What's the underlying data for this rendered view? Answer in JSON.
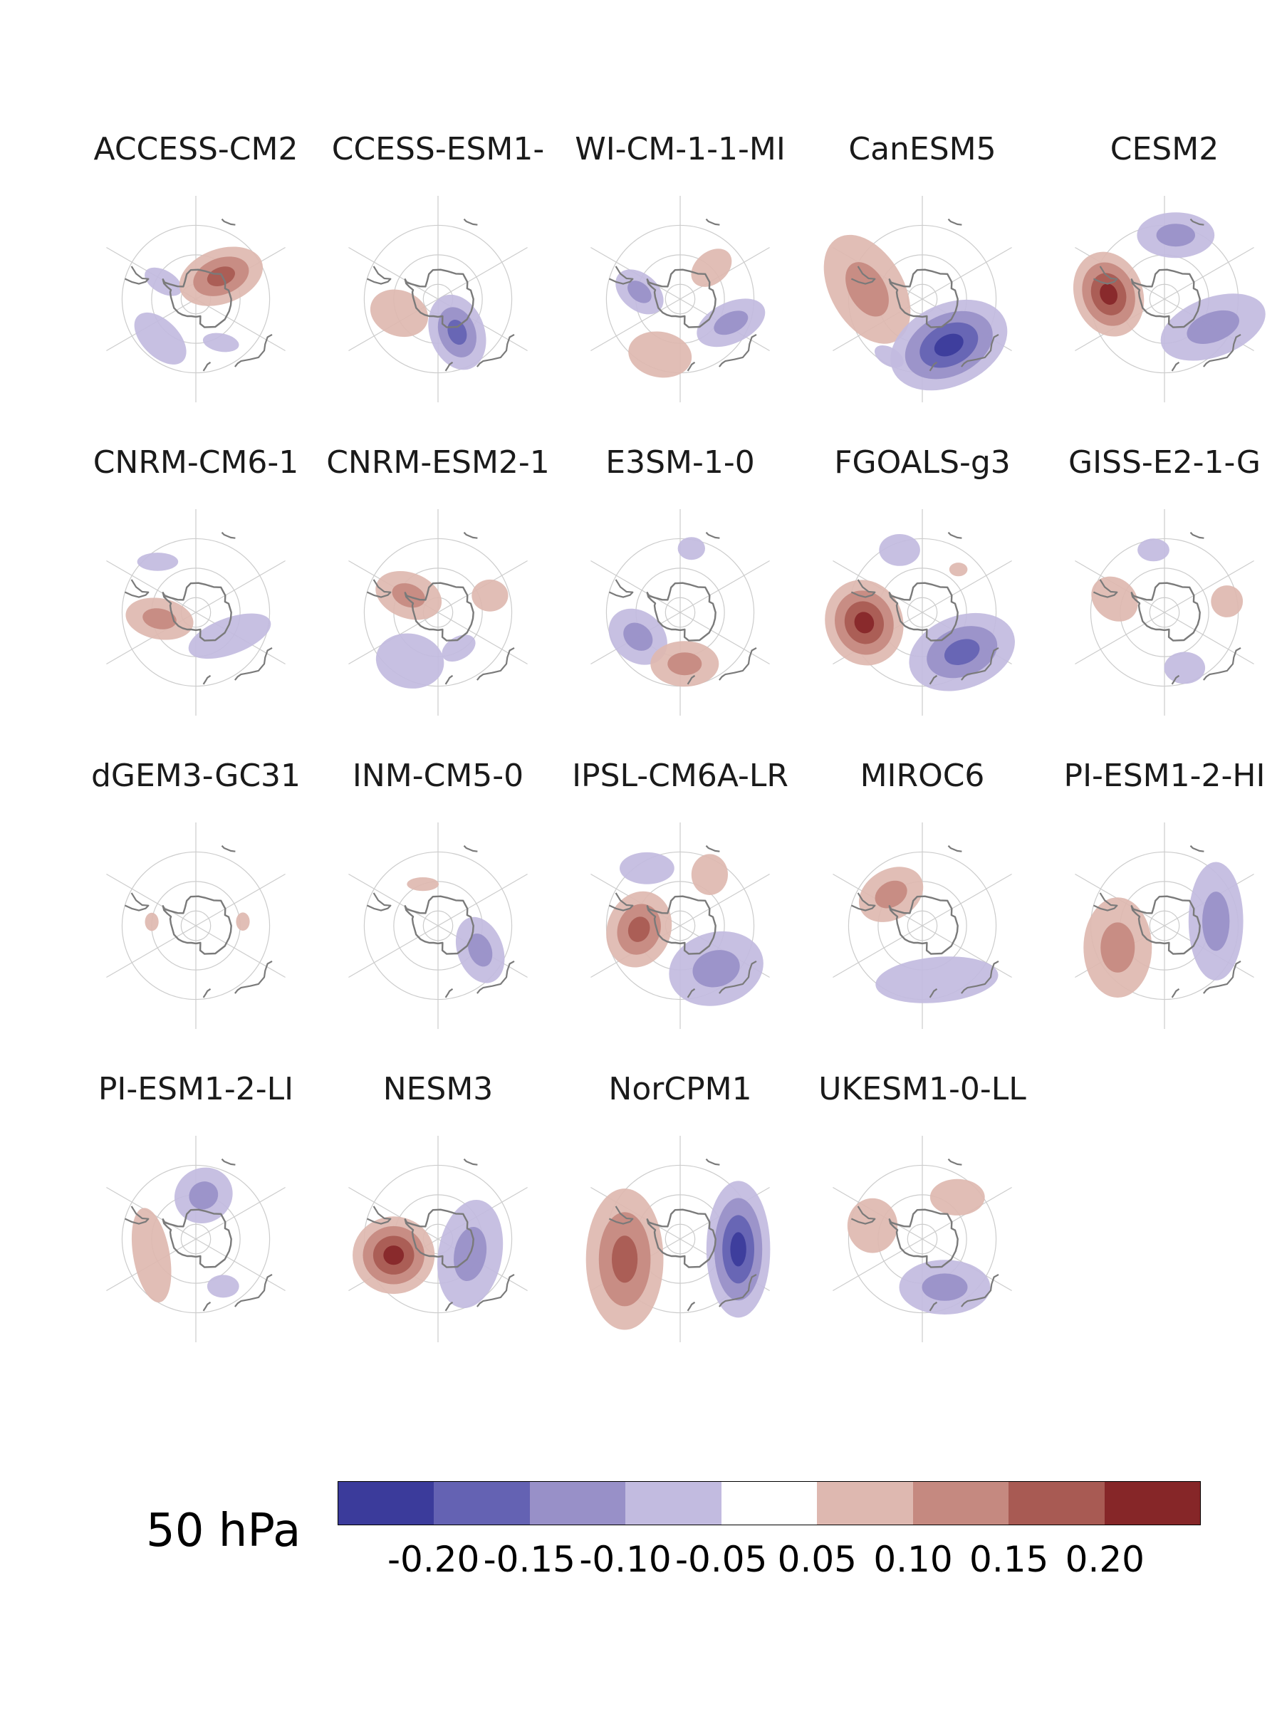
{
  "panels": [
    {
      "title": "ACCESS-CM2",
      "blobs": [
        {
          "lat": -67,
          "lon": 48,
          "rx": 0.19,
          "ry": 0.12,
          "rot": -20,
          "v": 0.15
        },
        {
          "lat": -65,
          "lon": -62,
          "rx": 0.09,
          "ry": 0.05,
          "rot": 30,
          "v": -0.05
        },
        {
          "lat": -54,
          "lon": -138,
          "rx": 0.14,
          "ry": 0.08,
          "rot": 45,
          "v": -0.05
        },
        {
          "lat": -56,
          "lon": 150,
          "rx": 0.08,
          "ry": 0.04,
          "rot": 10,
          "v": -0.05
        }
      ]
    },
    {
      "title": "CCESS-ESM1-",
      "blobs": [
        {
          "lat": -64,
          "lon": 150,
          "rx": 0.17,
          "ry": 0.12,
          "rot": 70,
          "v": -0.15
        },
        {
          "lat": -62,
          "lon": -110,
          "rx": 0.13,
          "ry": 0.1,
          "rot": 20,
          "v": 0.05
        }
      ]
    },
    {
      "title": "WI-CM-1-1-MI",
      "blobs": [
        {
          "lat": -62,
          "lon": -80,
          "rx": 0.12,
          "ry": 0.08,
          "rot": 40,
          "v": -0.1
        },
        {
          "lat": -60,
          "lon": 45,
          "rx": 0.1,
          "ry": 0.07,
          "rot": -40,
          "v": 0.05
        },
        {
          "lat": -50,
          "lon": -160,
          "rx": 0.14,
          "ry": 0.1,
          "rot": 10,
          "v": 0.05
        },
        {
          "lat": -52,
          "lon": 115,
          "rx": 0.16,
          "ry": 0.09,
          "rot": -25,
          "v": -0.1
        }
      ]
    },
    {
      "title": "CanESM5",
      "blobs": [
        {
          "lat": -52,
          "lon": -80,
          "rx": 0.26,
          "ry": 0.16,
          "rot": 60,
          "v": 0.1
        },
        {
          "lat": -54,
          "lon": 150,
          "rx": 0.27,
          "ry": 0.18,
          "rot": -25,
          "v": -0.2
        },
        {
          "lat": -45,
          "lon": -150,
          "rx": 0.07,
          "ry": 0.04,
          "rot": 30,
          "v": -0.05
        }
      ]
    },
    {
      "title": "CESM2",
      "blobs": [
        {
          "lat": -52,
          "lon": -85,
          "rx": 0.19,
          "ry": 0.15,
          "rot": 70,
          "v": 0.2
        },
        {
          "lat": -46,
          "lon": 10,
          "rx": 0.17,
          "ry": 0.1,
          "rot": 0,
          "v": -0.1
        },
        {
          "lat": -52,
          "lon": 120,
          "rx": 0.24,
          "ry": 0.13,
          "rot": -20,
          "v": -0.1
        }
      ]
    },
    {
      "title": "CNRM-CM6-1",
      "blobs": [
        {
          "lat": -65,
          "lon": -100,
          "rx": 0.15,
          "ry": 0.09,
          "rot": 10,
          "v": 0.1
        },
        {
          "lat": -62,
          "lon": 125,
          "rx": 0.19,
          "ry": 0.08,
          "rot": -20,
          "v": -0.05
        },
        {
          "lat": -47,
          "lon": -37,
          "rx": 0.09,
          "ry": 0.04,
          "rot": 0,
          "v": -0.05
        }
      ]
    },
    {
      "title": "CNRM-ESM2-1",
      "blobs": [
        {
          "lat": -67,
          "lon": -60,
          "rx": 0.15,
          "ry": 0.1,
          "rot": 20,
          "v": 0.1
        },
        {
          "lat": -53,
          "lon": 72,
          "rx": 0.08,
          "ry": 0.07,
          "rot": 0,
          "v": 0.05
        },
        {
          "lat": -52,
          "lon": -150,
          "rx": 0.15,
          "ry": 0.12,
          "rot": 10,
          "v": -0.05
        },
        {
          "lat": -62,
          "lon": 150,
          "rx": 0.08,
          "ry": 0.05,
          "rot": -30,
          "v": -0.05
        }
      ]
    },
    {
      "title": "E3SM-1-0",
      "blobs": [
        {
          "lat": -57,
          "lon": -120,
          "rx": 0.14,
          "ry": 0.11,
          "rot": 40,
          "v": -0.1
        },
        {
          "lat": -55,
          "lon": 175,
          "rx": 0.15,
          "ry": 0.1,
          "rot": 0,
          "v": 0.1
        },
        {
          "lat": -46,
          "lon": 10,
          "rx": 0.06,
          "ry": 0.05,
          "rot": 0,
          "v": -0.05
        }
      ]
    },
    {
      "title": "FGOALS-g3",
      "blobs": [
        {
          "lat": -50,
          "lon": -100,
          "rx": 0.19,
          "ry": 0.17,
          "rot": 70,
          "v": 0.2
        },
        {
          "lat": -52,
          "lon": 135,
          "rx": 0.24,
          "ry": 0.16,
          "rot": -20,
          "v": -0.15
        },
        {
          "lat": -45,
          "lon": -20,
          "rx": 0.09,
          "ry": 0.07,
          "rot": 0,
          "v": -0.05
        },
        {
          "lat": -52,
          "lon": 40,
          "rx": 0.04,
          "ry": 0.03,
          "rot": 0,
          "v": 0.05
        }
      ]
    },
    {
      "title": "GISS-E2-1-G",
      "blobs": [
        {
          "lat": -55,
          "lon": -75,
          "rx": 0.11,
          "ry": 0.09,
          "rot": 40,
          "v": 0.05
        },
        {
          "lat": -47,
          "lon": 80,
          "rx": 0.07,
          "ry": 0.07,
          "rot": 0,
          "v": 0.05
        },
        {
          "lat": -47,
          "lon": -10,
          "rx": 0.07,
          "ry": 0.05,
          "rot": 0,
          "v": -0.05
        },
        {
          "lat": -50,
          "lon": 160,
          "rx": 0.09,
          "ry": 0.07,
          "rot": 0,
          "v": -0.05
        }
      ]
    },
    {
      "title": "dGEM3-GC31",
      "blobs": [
        {
          "lat": -60,
          "lon": -85,
          "rx": 0.03,
          "ry": 0.04,
          "rot": 0,
          "v": 0.05
        },
        {
          "lat": -58,
          "lon": 85,
          "rx": 0.03,
          "ry": 0.04,
          "rot": 0,
          "v": 0.05
        }
      ]
    },
    {
      "title": "INM-CM5-0",
      "blobs": [
        {
          "lat": -57,
          "lon": 120,
          "rx": 0.15,
          "ry": 0.1,
          "rot": 70,
          "v": -0.1
        },
        {
          "lat": -60,
          "lon": -20,
          "rx": 0.07,
          "ry": 0.03,
          "rot": 0,
          "v": 0.05
        }
      ]
    },
    {
      "title": "IPSL-CM6A-LR",
      "blobs": [
        {
          "lat": -62,
          "lon": -95,
          "rx": 0.14,
          "ry": 0.17,
          "rot": 20,
          "v": 0.15
        },
        {
          "lat": -52,
          "lon": 140,
          "rx": 0.21,
          "ry": 0.16,
          "rot": -15,
          "v": -0.1
        },
        {
          "lat": -45,
          "lon": -30,
          "rx": 0.12,
          "ry": 0.07,
          "rot": 0,
          "v": -0.05
        },
        {
          "lat": -50,
          "lon": 30,
          "rx": 0.08,
          "ry": 0.09,
          "rot": 0,
          "v": 0.05
        }
      ]
    },
    {
      "title": "MIROC6",
      "blobs": [
        {
          "lat": -60,
          "lon": -45,
          "rx": 0.15,
          "ry": 0.11,
          "rot": -30,
          "v": 0.1
        },
        {
          "lat": -52,
          "lon": 165,
          "rx": 0.27,
          "ry": 0.1,
          "rot": -5,
          "v": -0.05
        }
      ]
    },
    {
      "title": "PI-ESM1-2-HI",
      "blobs": [
        {
          "lat": -55,
          "lon": -115,
          "rx": 0.15,
          "ry": 0.22,
          "rot": 0,
          "v": 0.1
        },
        {
          "lat": -55,
          "lon": 85,
          "rx": 0.12,
          "ry": 0.26,
          "rot": 0,
          "v": -0.1
        }
      ]
    },
    {
      "title": "PI-ESM1-2-LI",
      "blobs": [
        {
          "lat": -60,
          "lon": 10,
          "rx": 0.13,
          "ry": 0.12,
          "rot": -30,
          "v": -0.1
        },
        {
          "lat": -58,
          "lon": -110,
          "rx": 0.08,
          "ry": 0.21,
          "rot": -10,
          "v": 0.05
        },
        {
          "lat": -53,
          "lon": 150,
          "rx": 0.07,
          "ry": 0.05,
          "rot": 0,
          "v": -0.05
        }
      ]
    },
    {
      "title": "NESM3",
      "blobs": [
        {
          "lat": -58,
          "lon": -110,
          "rx": 0.18,
          "ry": 0.17,
          "rot": 0,
          "v": 0.2
        },
        {
          "lat": -66,
          "lon": 115,
          "rx": 0.14,
          "ry": 0.24,
          "rot": 10,
          "v": -0.1
        }
      ]
    },
    {
      "title": "NorCPM1",
      "blobs": [
        {
          "lat": -50,
          "lon": -110,
          "rx": 0.17,
          "ry": 0.31,
          "rot": 0,
          "v": 0.15
        },
        {
          "lat": -50,
          "lon": 100,
          "rx": 0.14,
          "ry": 0.3,
          "rot": 0,
          "v": -0.2
        }
      ]
    },
    {
      "title": "UKESM1-0-LL",
      "blobs": [
        {
          "lat": -55,
          "lon": -75,
          "rx": 0.11,
          "ry": 0.12,
          "rot": 0,
          "v": 0.05
        },
        {
          "lat": -53,
          "lon": 40,
          "rx": 0.12,
          "ry": 0.08,
          "rot": 0,
          "v": 0.05
        },
        {
          "lat": -54,
          "lon": 155,
          "rx": 0.2,
          "ry": 0.12,
          "rot": 0,
          "v": -0.1
        }
      ]
    }
  ],
  "pressure_label": "50 hPa",
  "colorbar": {
    "levels": [
      -0.25,
      -0.2,
      -0.15,
      -0.1,
      -0.05,
      0.05,
      0.1,
      0.15,
      0.2,
      0.25
    ],
    "colors": [
      "#3b3b9b",
      "#6462b3",
      "#9890c8",
      "#c2bbe0",
      "#ffffff",
      "#deb8b0",
      "#c58980",
      "#a85a53",
      "#862628"
    ],
    "tick_labels": [
      "-0.20",
      "-0.15",
      "-0.10",
      "-0.05",
      "0.05",
      "0.10",
      "0.15",
      "0.20"
    ],
    "tick_values": [
      -0.2,
      -0.15,
      -0.1,
      -0.05,
      0.05,
      0.1,
      0.15,
      0.2
    ]
  }
}
